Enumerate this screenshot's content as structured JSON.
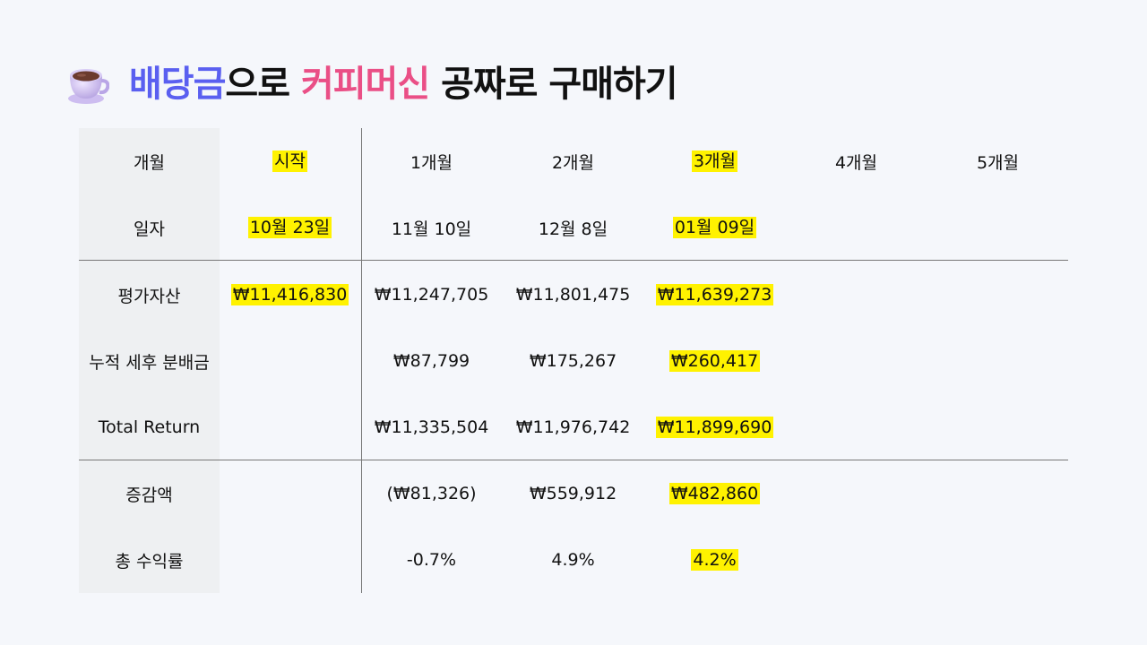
{
  "title": {
    "part1": "배당금",
    "part2": "으로 ",
    "part3": "커피머신",
    "part4": " 공짜로 구매하기"
  },
  "colors": {
    "title_blue": "#5a5ff0",
    "title_pink": "#ea4f86",
    "highlight": "#fff200",
    "label_bg": "#eef0f2"
  },
  "icon": "coffee-cup-icon",
  "table": {
    "rows": [
      {
        "label": "개월",
        "cells": [
          "시작",
          "1개월",
          "2개월",
          "3개월",
          "4개월",
          "5개월"
        ]
      },
      {
        "label": "일자",
        "cells": [
          "10월 23일",
          "11월 10일",
          "12월 8일",
          "01월 09일",
          "",
          ""
        ]
      },
      {
        "label": "평가자산",
        "cells": [
          "₩11,416,830",
          "₩11,247,705",
          "₩11,801,475",
          "₩11,639,273",
          "",
          ""
        ]
      },
      {
        "label": "누적 세후 분배금",
        "cells": [
          "",
          "₩87,799",
          "₩175,267",
          "₩260,417",
          "",
          ""
        ]
      },
      {
        "label": "Total Return",
        "cells": [
          "",
          "₩11,335,504",
          "₩11,976,742",
          "₩11,899,690",
          "",
          ""
        ]
      },
      {
        "label": "증감액",
        "cells": [
          "",
          "(₩81,326)",
          "₩559,912",
          "₩482,860",
          "",
          ""
        ]
      },
      {
        "label": "총 수익률",
        "cells": [
          "",
          "-0.7%",
          "4.9%",
          "4.2%",
          "",
          ""
        ]
      }
    ]
  }
}
